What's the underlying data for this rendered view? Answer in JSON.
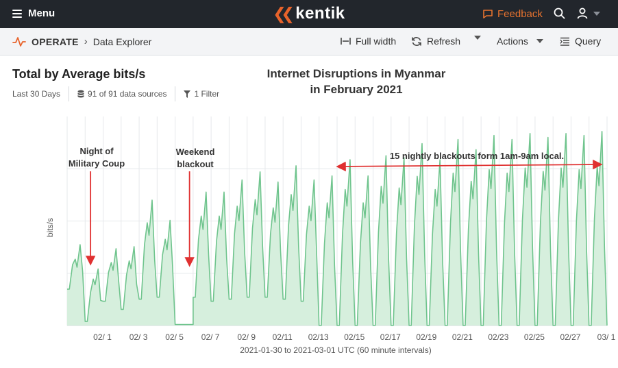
{
  "topbar": {
    "menu_label": "Menu",
    "logo_text": "kentik",
    "feedback_label": "Feedback"
  },
  "subbar": {
    "section": "OPERATE",
    "page": "Data Explorer",
    "full_width_label": "Full width",
    "refresh_label": "Refresh",
    "actions_label": "Actions",
    "query_label": "Query"
  },
  "panel": {
    "title": "Total by Average bits/s",
    "time_range": "Last 30 Days",
    "data_sources": "91 of 91 data sources",
    "filter": "1 Filter"
  },
  "overlay": {
    "title_line1": "Internet Disruptions in Myanmar",
    "title_line2": "in February 2021"
  },
  "colors": {
    "accent": "#e8632b",
    "series": "#6fc48d",
    "fill": "#d6efdd",
    "annotation": "#e03131"
  },
  "chart_data": {
    "type": "area",
    "title": "",
    "xlabel": "2021-01-30 to 2021-03-01 UTC (60 minute intervals)",
    "ylabel": "bits/s",
    "grid": true,
    "x_tick_labels": [
      "02/ 1",
      "02/ 3",
      "02/ 5",
      "02/ 7",
      "02/ 9",
      "02/11",
      "02/13",
      "02/15",
      "02/17",
      "02/19",
      "02/21",
      "02/23",
      "02/25",
      "02/27",
      "03/ 1"
    ],
    "x_range_days": [
      0,
      30
    ],
    "y_range": [
      0,
      1
    ],
    "series": [
      {
        "daily_peaks": [
          0.4,
          0.28,
          0.38,
          0.39,
          0.62,
          0.52,
          0.0,
          0.66,
          0.66,
          0.72,
          0.76,
          0.71,
          0.79,
          0.72,
          0.74,
          0.82,
          0.74,
          0.84,
          0.83,
          0.9,
          0.82,
          0.92,
          0.87,
          0.94,
          0.92,
          0.95,
          0.93,
          0.95,
          0.94,
          0.96
        ],
        "daily_troughs": [
          0.18,
          0.02,
          0.12,
          0.08,
          0.13,
          0.14,
          0.0,
          0.14,
          0.12,
          0.13,
          0.14,
          0.14,
          0.13,
          0.12,
          0.0,
          0.0,
          0.0,
          0.0,
          0.0,
          0.0,
          0.0,
          0.0,
          0.0,
          0.0,
          0.0,
          0.0,
          0.0,
          0.0,
          0.0,
          0.0
        ]
      }
    ],
    "annotations": [
      {
        "label_line1": "Night of",
        "label_line2": "Military Coup",
        "x_day": 1.3
      },
      {
        "label_line1": "Weekend",
        "label_line2": "blackout",
        "x_day": 6.8
      },
      {
        "label": "15 nightly blackouts form 1am-9am local.",
        "x_start_day": 15.0,
        "x_end_day": 30.0
      }
    ]
  }
}
